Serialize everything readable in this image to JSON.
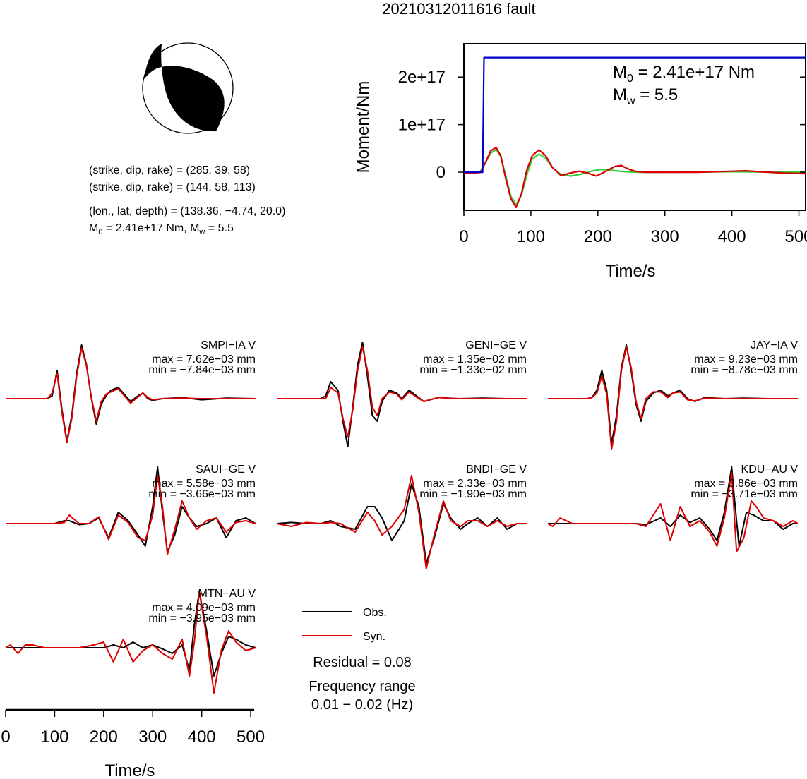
{
  "title": "20210312011616 fault",
  "mechanism": {
    "plane1": "(strike, dip, rake) = (285, 39, 58)",
    "plane2": "(strike, dip, rake) = (144, 58, 113)",
    "location": "(lon., lat, depth) = (138.36, −4.74, 20.0)",
    "magnitude_prefix": "M",
    "magnitude_sub0": "0",
    "magnitude_mid": " = 2.41e+17 Nm, M",
    "magnitude_subw": "w",
    "magnitude_end": " = 5.5"
  },
  "legend": {
    "obs_label": "Obs.",
    "syn_label": "Syn.",
    "residual": "Residual = 0.08",
    "freq_label": "Frequency range",
    "freq_value": "0.01 − 0.02 (Hz)"
  },
  "colors": {
    "moment": "#0000cc",
    "obs": "#000000",
    "syn": "#dd0000",
    "green_syn": "#33cc33",
    "beachball": "#000000"
  },
  "chart_data": [
    {
      "type": "line",
      "id": "moment",
      "ylabel": "Moment/Nm",
      "xlabel": "Time/s",
      "xlim": [
        0,
        510
      ],
      "ylim": [
        -8e+16,
        2.7e+17
      ],
      "xticks": [
        0,
        100,
        200,
        300,
        400,
        500
      ],
      "yticks": [
        0,
        1e+17,
        2e+17
      ],
      "yticklabels": [
        "0",
        "1e+17",
        "2e+17"
      ],
      "annotation_m0_pre": "M",
      "annotation_m0_sub": "0",
      "annotation_m0_post": " = 2.41e+17 Nm",
      "annotation_mw_pre": "M",
      "annotation_mw_sub": "w",
      "annotation_mw_post": " = 5.5",
      "series": [
        {
          "color": "blue",
          "x": [
            0,
            28,
            30,
            30.5,
            510
          ],
          "y": [
            0,
            0,
            2.41e+17,
            2.41e+17,
            2.41e+17
          ]
        },
        {
          "color": "red",
          "x": [
            0,
            15,
            25,
            32,
            40,
            48,
            55,
            62,
            70,
            78,
            86,
            94,
            102,
            112,
            122,
            132,
            145,
            158,
            172,
            185,
            198,
            212,
            225,
            235,
            245,
            255,
            270,
            300,
            350,
            400,
            420,
            440,
            480,
            510
          ],
          "y": [
            -2000000000000000.0,
            -2000000000000000.0,
            0,
            2e+16,
            4.5e+16,
            5.2e+16,
            3.5e+16,
            -1e+16,
            -5.5e+16,
            -7.4e+16,
            -4.5e+16,
            5000000000000000.0,
            3.5e+16,
            4.7e+16,
            3.5e+16,
            1e+16,
            -7000000000000000.0,
            -2000000000000000.0,
            2000000000000000.0,
            -2000000000000000.0,
            -8000000000000000.0,
            2000000000000000.0,
            1.2e+16,
            1.4e+16,
            7000000000000000.0,
            2000000000000000.0,
            0,
            0,
            0,
            2000000000000000.0,
            3000000000000000.0,
            1000000000000000.0,
            -2000000000000000.0,
            -3000000000000000.0
          ]
        },
        {
          "color": "green",
          "x": [
            0,
            15,
            25,
            32,
            40,
            48,
            55,
            62,
            70,
            78,
            86,
            94,
            102,
            112,
            122,
            132,
            145,
            160,
            175,
            190,
            205,
            220,
            240,
            260,
            300,
            400,
            510
          ],
          "y": [
            -1000000000000000.0,
            -1000000000000000.0,
            2000000000000000.0,
            2e+16,
            4e+16,
            4.8e+16,
            3.3e+16,
            -5000000000000000.0,
            -5e+16,
            -6.8e+16,
            -4.8e+16,
            -5000000000000000.0,
            2.8e+16,
            3.8e+16,
            3e+16,
            1e+16,
            -5000000000000000.0,
            -8000000000000000.0,
            -4000000000000000.0,
            2000000000000000.0,
            6000000000000000.0,
            4000000000000000.0,
            1000000000000000.0,
            0,
            0,
            1000000000000000.0,
            0
          ]
        }
      ]
    },
    {
      "type": "line",
      "id": "waveforms",
      "xlabel": "Time/s",
      "xlim": [
        0,
        510
      ],
      "xticks": [
        0,
        100,
        200,
        300,
        400,
        500
      ],
      "stations": [
        {
          "name": "SMPI−IA V",
          "max": "max = 7.62e−03 mm",
          "min": "min = −7.84e−03 mm",
          "obs_x": [
            0,
            60,
            85,
            95,
            105,
            115,
            125,
            135,
            145,
            155,
            165,
            175,
            185,
            195,
            205,
            215,
            230,
            245,
            255,
            270,
            280,
            290,
            300,
            320,
            360,
            400,
            450,
            510
          ],
          "obs_y": [
            0,
            0,
            0,
            0.05,
            0.5,
            -0.2,
            -0.75,
            -0.3,
            0.45,
            0.95,
            0.6,
            0,
            -0.45,
            -0.1,
            0.05,
            0.15,
            0.2,
            0.05,
            -0.05,
            0.05,
            0.1,
            0,
            -0.03,
            0,
            0.02,
            -0.02,
            0.01,
            0
          ],
          "syn_x": [
            0,
            60,
            85,
            95,
            105,
            115,
            125,
            135,
            145,
            155,
            165,
            175,
            185,
            195,
            205,
            215,
            230,
            245,
            255,
            270,
            280,
            290,
            300,
            320,
            360,
            400,
            450,
            510
          ],
          "syn_y": [
            0,
            0,
            0,
            0.1,
            0.45,
            -0.25,
            -0.78,
            -0.35,
            0.4,
            0.9,
            0.58,
            0.02,
            -0.4,
            -0.05,
            0.08,
            0.12,
            0.18,
            0.02,
            -0.08,
            0.03,
            0.1,
            0.02,
            -0.02,
            0,
            0.01,
            0,
            0,
            0
          ]
        },
        {
          "name": "GENI−GE V",
          "max": "max = 1.35e−02 mm",
          "min": "min = −1.33e−02 mm",
          "obs_x": [
            0,
            90,
            100,
            110,
            125,
            135,
            145,
            155,
            165,
            175,
            185,
            195,
            205,
            215,
            230,
            245,
            255,
            270,
            285,
            300,
            330,
            370,
            420,
            470,
            510
          ],
          "obs_y": [
            0,
            0,
            0.05,
            0.3,
            0.15,
            -0.4,
            -0.85,
            -0.15,
            0.6,
            1,
            0.4,
            -0.3,
            -0.4,
            -0.05,
            0.15,
            0.1,
            0,
            0.15,
            0.05,
            -0.05,
            0.02,
            0,
            0.01,
            0,
            0
          ],
          "syn_x": [
            0,
            90,
            100,
            110,
            125,
            135,
            145,
            155,
            165,
            175,
            185,
            195,
            205,
            215,
            230,
            245,
            255,
            270,
            285,
            300,
            330,
            370,
            420,
            470,
            510
          ],
          "syn_y": [
            0,
            0,
            0,
            0.2,
            0.1,
            -0.35,
            -0.68,
            -0.2,
            0.5,
            0.92,
            0.5,
            -0.15,
            -0.3,
            0,
            0.12,
            0.08,
            -0.02,
            0.12,
            0.03,
            -0.05,
            0.02,
            0,
            0,
            0,
            0
          ]
        },
        {
          "name": "JAY−IA V",
          "max": "max = 9.23e−03 mm",
          "min": "min = −8.78e−03 mm",
          "obs_x": [
            0,
            80,
            90,
            100,
            110,
            120,
            130,
            140,
            150,
            160,
            170,
            180,
            190,
            200,
            215,
            230,
            245,
            255,
            270,
            285,
            300,
            320,
            360,
            400,
            450,
            510
          ],
          "obs_y": [
            0,
            0,
            0.02,
            0.15,
            0.5,
            0.15,
            -0.8,
            -0.3,
            0.55,
            0.95,
            0.5,
            -0.1,
            -0.4,
            -0.05,
            0.1,
            0.15,
            0.05,
            0.1,
            0.15,
            0,
            -0.05,
            0.02,
            0,
            0.01,
            0,
            0
          ],
          "syn_x": [
            0,
            80,
            90,
            100,
            110,
            120,
            130,
            140,
            150,
            160,
            170,
            180,
            190,
            200,
            215,
            230,
            245,
            255,
            270,
            285,
            300,
            320,
            360,
            400,
            450,
            510
          ],
          "syn_y": [
            0,
            0,
            0.02,
            0.1,
            0.4,
            0.08,
            -0.9,
            -0.4,
            0.5,
            0.92,
            0.55,
            -0.05,
            -0.35,
            0,
            0.12,
            0.12,
            0.02,
            0.1,
            0.12,
            -0.02,
            -0.04,
            0.01,
            0,
            0,
            0,
            0
          ]
        },
        {
          "name": "SAUI−GE V",
          "max": "max = 5.58e−03 mm",
          "min": "min = −3.66e−03 mm",
          "obs_x": [
            0,
            100,
            120,
            130,
            150,
            170,
            190,
            210,
            230,
            250,
            270,
            285,
            300,
            310,
            320,
            330,
            345,
            360,
            375,
            390,
            410,
            430,
            450,
            470,
            490,
            510
          ],
          "obs_y": [
            0,
            0,
            0.05,
            0.05,
            -0.02,
            0,
            0.1,
            -0.25,
            0.2,
            0.05,
            -0.2,
            -0.4,
            0.3,
            1,
            0.2,
            -0.5,
            -0.2,
            0.3,
            0.1,
            -0.05,
            0,
            0.1,
            -0.25,
            0.05,
            0.1,
            0
          ],
          "syn_x": [
            0,
            100,
            120,
            130,
            150,
            170,
            190,
            210,
            230,
            250,
            270,
            285,
            300,
            310,
            320,
            330,
            345,
            360,
            375,
            390,
            410,
            430,
            450,
            470,
            490,
            510
          ],
          "syn_y": [
            0,
            0,
            0.02,
            0.15,
            0,
            0,
            0.12,
            -0.28,
            0.15,
            0.02,
            -0.25,
            -0.3,
            0.15,
            0.85,
            0.3,
            -0.55,
            -0.1,
            0.4,
            0.1,
            -0.1,
            0.05,
            0.1,
            -0.15,
            0.02,
            0.05,
            0
          ]
        },
        {
          "name": "BNDI−GE V",
          "max": "max = 2.33e−03 mm",
          "min": "min = −1.90e−03 mm",
          "obs_x": [
            0,
            30,
            60,
            90,
            110,
            130,
            160,
            185,
            200,
            215,
            235,
            260,
            275,
            290,
            305,
            320,
            340,
            355,
            375,
            390,
            410,
            430,
            450,
            470,
            490,
            510
          ],
          "obs_y": [
            0,
            0.02,
            0,
            0,
            0.05,
            -0.05,
            -0.1,
            0.3,
            0.3,
            0.1,
            -0.3,
            0.05,
            0.7,
            0.3,
            -0.7,
            -0.3,
            0.35,
            0.1,
            -0.1,
            0,
            0.1,
            -0.05,
            0.1,
            -0.1,
            0,
            0
          ],
          "syn_x": [
            0,
            30,
            60,
            90,
            110,
            130,
            160,
            185,
            200,
            215,
            235,
            260,
            275,
            290,
            305,
            320,
            340,
            355,
            375,
            390,
            410,
            430,
            450,
            470,
            490,
            510
          ],
          "syn_y": [
            0,
            -0.05,
            0.02,
            0,
            0.02,
            0,
            -0.15,
            0.2,
            0.05,
            -0.2,
            -0.05,
            0.25,
            0.85,
            0.2,
            -0.8,
            -0.25,
            0.4,
            0.05,
            -0.05,
            0.05,
            0.05,
            -0.05,
            0.05,
            -0.05,
            0,
            0
          ]
        },
        {
          "name": "KDU−AU V",
          "max": "max = 3.86e−03 mm",
          "min": "min = −3.71e−03 mm",
          "obs_x": [
            0,
            50,
            100,
            150,
            180,
            200,
            230,
            250,
            270,
            290,
            310,
            330,
            345,
            360,
            375,
            380,
            390,
            405,
            420,
            440,
            460,
            480,
            500,
            510
          ],
          "obs_y": [
            0,
            0,
            0,
            0,
            0,
            -0.02,
            0.1,
            -0.05,
            0.15,
            0.02,
            0.1,
            -0.1,
            -0.3,
            0.2,
            1,
            0.5,
            -0.4,
            0.2,
            0.15,
            0.05,
            0.05,
            -0.1,
            0,
            0
          ],
          "syn_x": [
            0,
            10,
            25,
            50,
            100,
            150,
            180,
            200,
            230,
            250,
            270,
            290,
            310,
            330,
            345,
            360,
            375,
            385,
            400,
            415,
            425,
            440,
            460,
            480,
            500,
            510
          ],
          "syn_y": [
            0,
            -0.05,
            0.1,
            0,
            0,
            0,
            0,
            -0.05,
            0.35,
            -0.3,
            0.3,
            -0.05,
            0.05,
            -0.15,
            -0.4,
            0.1,
            0.9,
            -0.5,
            -0.25,
            0.4,
            0.3,
            0.1,
            0.05,
            -0.05,
            0.05,
            0
          ]
        },
        {
          "name": "MTN−AU V",
          "max": "max = 4.09e−03 mm",
          "min": "min = −3.95e−03 mm",
          "obs_x": [
            0,
            50,
            100,
            150,
            180,
            200,
            220,
            240,
            260,
            280,
            300,
            320,
            340,
            360,
            375,
            385,
            395,
            410,
            425,
            440,
            455,
            470,
            490,
            510
          ],
          "obs_y": [
            0,
            0,
            0,
            0,
            0,
            0,
            0.05,
            0,
            0.1,
            0,
            0.05,
            -0.02,
            -0.1,
            0.05,
            -0.4,
            0.4,
            1,
            0.3,
            -0.5,
            -0.1,
            0.2,
            0.15,
            0.05,
            0
          ],
          "syn_x": [
            0,
            10,
            25,
            40,
            55,
            80,
            100,
            150,
            180,
            200,
            220,
            240,
            260,
            280,
            300,
            320,
            340,
            360,
            375,
            385,
            395,
            410,
            425,
            440,
            455,
            470,
            490,
            510
          ],
          "syn_y": [
            0,
            0.05,
            -0.1,
            0.05,
            0.05,
            0,
            0,
            0,
            0.05,
            0.1,
            -0.25,
            0.15,
            -0.25,
            -0.05,
            0.05,
            -0.1,
            -0.2,
            0.15,
            -0.5,
            0.1,
            1,
            0.2,
            -0.8,
            -0.05,
            0.3,
            0.1,
            -0.05,
            0
          ]
        }
      ]
    }
  ]
}
